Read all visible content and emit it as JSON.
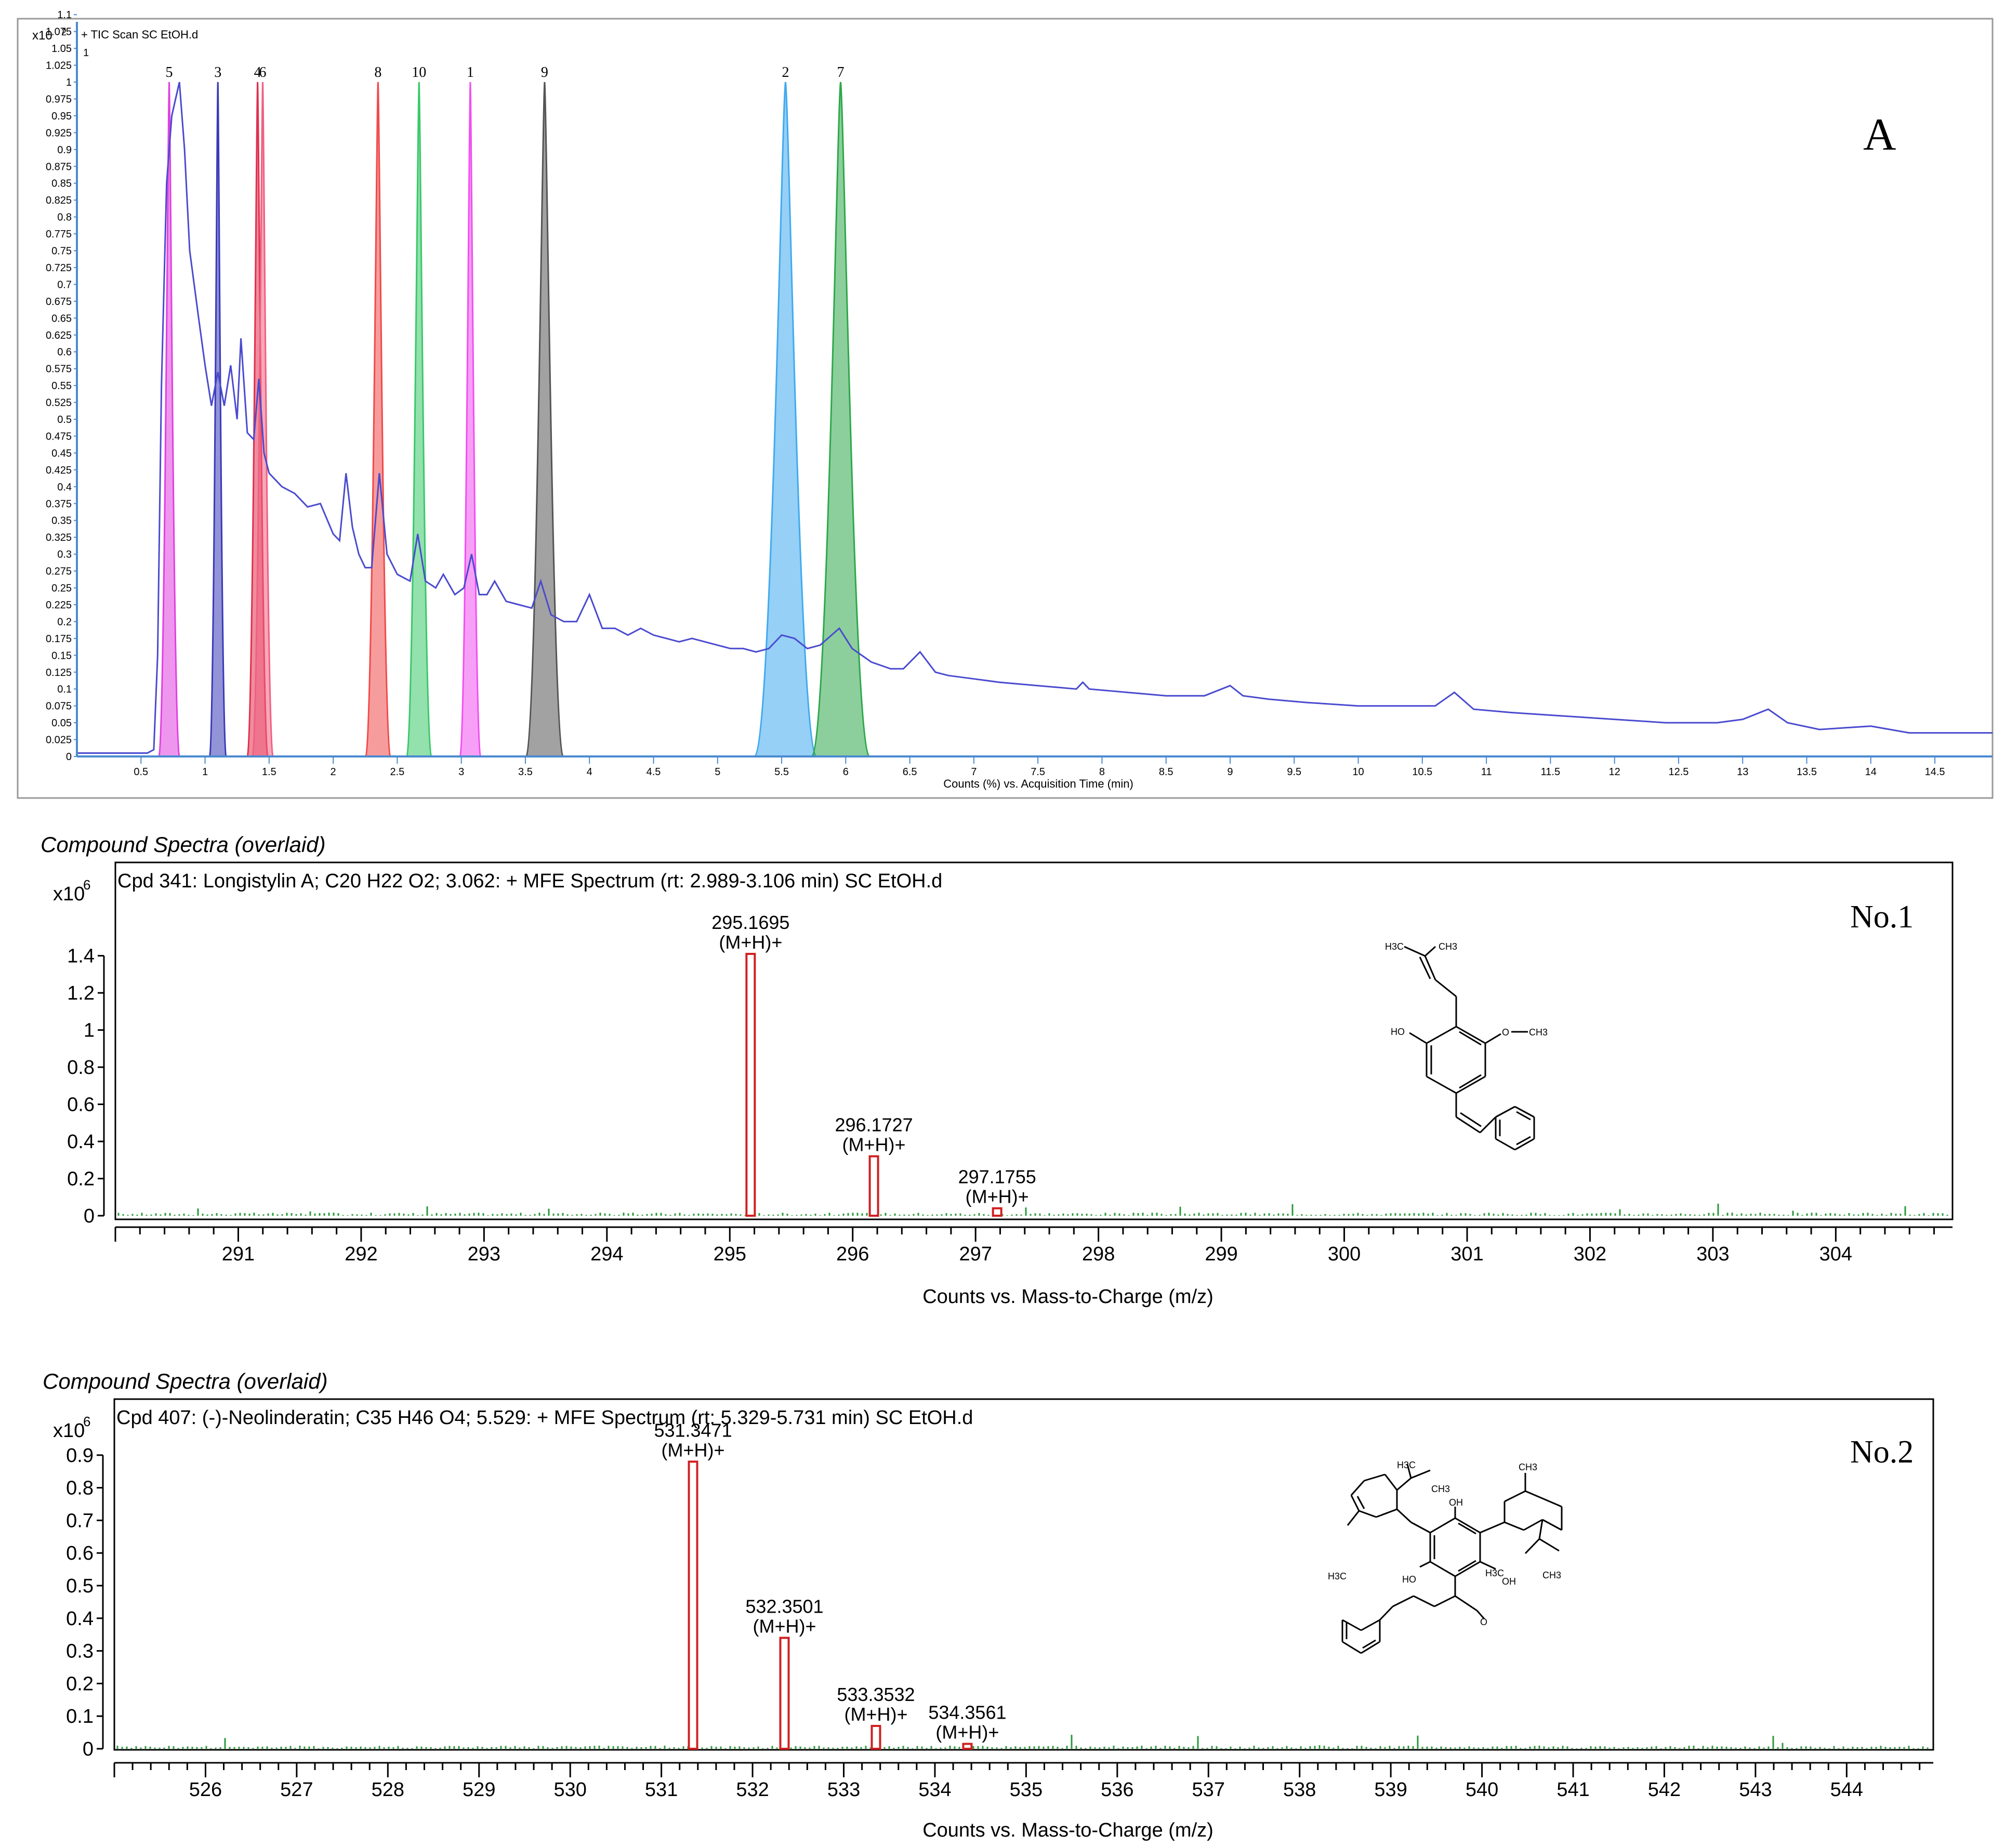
{
  "chart_data": [
    {
      "type": "line",
      "panel_label": "A",
      "legend_text": "+ TIC Scan SC EtOH.d",
      "y_multiplier_label": "x10",
      "y_multiplier_exp": "2",
      "y_corner_tick": "1",
      "xlabel": "Counts (%) vs. Acquisition Time (min)",
      "xlim": [
        0,
        14.95
      ],
      "ylim": [
        0,
        1.1
      ],
      "x_ticks": [
        "0.5",
        "1",
        "1.5",
        "2",
        "2.5",
        "3",
        "3.5",
        "4",
        "4.5",
        "5",
        "5.5",
        "6",
        "6.5",
        "7",
        "7.5",
        "8",
        "8.5",
        "9",
        "9.5",
        "10",
        "10.5",
        "11",
        "11.5",
        "12",
        "12.5",
        "13",
        "13.5",
        "14",
        "14.5"
      ],
      "y_ticks": [
        "0",
        "0.025",
        "0.05",
        "0.075",
        "0.1",
        "0.125",
        "0.15",
        "0.175",
        "0.2",
        "0.225",
        "0.25",
        "0.275",
        "0.3",
        "0.325",
        "0.35",
        "0.375",
        "0.4",
        "0.425",
        "0.45",
        "0.475",
        "0.5",
        "0.525",
        "0.55",
        "0.575",
        "0.6",
        "0.625",
        "0.65",
        "0.675",
        "0.7",
        "0.725",
        "0.75",
        "0.775",
        "0.8",
        "0.825",
        "0.85",
        "0.875",
        "0.9",
        "0.925",
        "0.95",
        "0.975",
        "1",
        "1.025",
        "1.05",
        "1.075",
        "1.1"
      ],
      "tic_series": {
        "color": "#4a4ad0",
        "points": [
          [
            0,
            0.005
          ],
          [
            0.55,
            0.005
          ],
          [
            0.6,
            0.01
          ],
          [
            0.63,
            0.15
          ],
          [
            0.66,
            0.55
          ],
          [
            0.7,
            0.85
          ],
          [
            0.74,
            0.95
          ],
          [
            0.8,
            1.0
          ],
          [
            0.84,
            0.9
          ],
          [
            0.88,
            0.75
          ],
          [
            0.95,
            0.65
          ],
          [
            1.0,
            0.58
          ],
          [
            1.05,
            0.52
          ],
          [
            1.1,
            0.57
          ],
          [
            1.15,
            0.52
          ],
          [
            1.2,
            0.58
          ],
          [
            1.25,
            0.5
          ],
          [
            1.28,
            0.62
          ],
          [
            1.33,
            0.48
          ],
          [
            1.38,
            0.47
          ],
          [
            1.42,
            0.56
          ],
          [
            1.46,
            0.45
          ],
          [
            1.5,
            0.42
          ],
          [
            1.55,
            0.41
          ],
          [
            1.6,
            0.4
          ],
          [
            1.7,
            0.39
          ],
          [
            1.75,
            0.38
          ],
          [
            1.8,
            0.37
          ],
          [
            1.9,
            0.375
          ],
          [
            2.0,
            0.33
          ],
          [
            2.05,
            0.32
          ],
          [
            2.1,
            0.42
          ],
          [
            2.15,
            0.34
          ],
          [
            2.2,
            0.3
          ],
          [
            2.25,
            0.28
          ],
          [
            2.3,
            0.28
          ],
          [
            2.36,
            0.42
          ],
          [
            2.42,
            0.3
          ],
          [
            2.5,
            0.27
          ],
          [
            2.6,
            0.26
          ],
          [
            2.66,
            0.33
          ],
          [
            2.72,
            0.26
          ],
          [
            2.8,
            0.25
          ],
          [
            2.86,
            0.27
          ],
          [
            2.95,
            0.24
          ],
          [
            3.02,
            0.25
          ],
          [
            3.08,
            0.3
          ],
          [
            3.14,
            0.24
          ],
          [
            3.2,
            0.24
          ],
          [
            3.26,
            0.26
          ],
          [
            3.35,
            0.23
          ],
          [
            3.45,
            0.225
          ],
          [
            3.55,
            0.22
          ],
          [
            3.62,
            0.26
          ],
          [
            3.7,
            0.21
          ],
          [
            3.8,
            0.2
          ],
          [
            3.9,
            0.2
          ],
          [
            4.0,
            0.24
          ],
          [
            4.1,
            0.19
          ],
          [
            4.2,
            0.19
          ],
          [
            4.3,
            0.18
          ],
          [
            4.4,
            0.19
          ],
          [
            4.5,
            0.18
          ],
          [
            4.6,
            0.175
          ],
          [
            4.7,
            0.17
          ],
          [
            4.8,
            0.175
          ],
          [
            4.9,
            0.17
          ],
          [
            5.0,
            0.165
          ],
          [
            5.1,
            0.16
          ],
          [
            5.2,
            0.16
          ],
          [
            5.3,
            0.155
          ],
          [
            5.4,
            0.16
          ],
          [
            5.5,
            0.18
          ],
          [
            5.6,
            0.175
          ],
          [
            5.7,
            0.16
          ],
          [
            5.8,
            0.165
          ],
          [
            5.95,
            0.19
          ],
          [
            6.05,
            0.16
          ],
          [
            6.2,
            0.14
          ],
          [
            6.35,
            0.13
          ],
          [
            6.45,
            0.13
          ],
          [
            6.58,
            0.155
          ],
          [
            6.7,
            0.125
          ],
          [
            6.8,
            0.12
          ],
          [
            7.0,
            0.115
          ],
          [
            7.2,
            0.11
          ],
          [
            7.5,
            0.105
          ],
          [
            7.8,
            0.1
          ],
          [
            7.85,
            0.11
          ],
          [
            7.9,
            0.1
          ],
          [
            8.2,
            0.095
          ],
          [
            8.5,
            0.09
          ],
          [
            8.8,
            0.09
          ],
          [
            9.0,
            0.105
          ],
          [
            9.1,
            0.09
          ],
          [
            9.3,
            0.085
          ],
          [
            9.6,
            0.08
          ],
          [
            10.0,
            0.075
          ],
          [
            10.3,
            0.075
          ],
          [
            10.6,
            0.075
          ],
          [
            10.75,
            0.095
          ],
          [
            10.9,
            0.07
          ],
          [
            11.2,
            0.065
          ],
          [
            11.6,
            0.06
          ],
          [
            12.0,
            0.055
          ],
          [
            12.4,
            0.05
          ],
          [
            12.8,
            0.05
          ],
          [
            13.0,
            0.055
          ],
          [
            13.2,
            0.07
          ],
          [
            13.35,
            0.05
          ],
          [
            13.6,
            0.04
          ],
          [
            14.0,
            0.045
          ],
          [
            14.3,
            0.035
          ],
          [
            14.95,
            0.035
          ]
        ]
      },
      "peaks": [
        {
          "label": "5",
          "center": 0.72,
          "width": 0.05,
          "color": "#e040e0"
        },
        {
          "label": "3",
          "center": 1.1,
          "width": 0.04,
          "color": "#3a3ab8"
        },
        {
          "label": "4",
          "center": 1.41,
          "width": 0.05,
          "color": "#e0304e"
        },
        {
          "label": "6",
          "center": 1.45,
          "width": 0.05,
          "color": "#f06080"
        },
        {
          "label": "8",
          "center": 2.35,
          "width": 0.06,
          "color": "#f04a4a"
        },
        {
          "label": "10",
          "center": 2.67,
          "width": 0.06,
          "color": "#3ac86a"
        },
        {
          "label": "1",
          "center": 3.07,
          "width": 0.05,
          "color": "#f050f0"
        },
        {
          "label": "9",
          "center": 3.65,
          "width": 0.09,
          "color": "#555555"
        },
        {
          "label": "2",
          "center": 5.53,
          "width": 0.15,
          "color": "#40aaee"
        },
        {
          "label": "7",
          "center": 5.96,
          "width": 0.14,
          "color": "#2ea84a"
        }
      ]
    },
    {
      "type": "bar",
      "section_title": "Compound Spectra (overlaid)",
      "header": "Cpd 341: Longistylin A; C20 H22 O2; 3.062: + MFE Spectrum (rt: 2.989-3.106 min) SC EtOH.d",
      "panel_label": "No.1",
      "y_multiplier_label": "x10",
      "y_multiplier_exp": "6",
      "xlabel": "Counts vs. Mass-to-Charge (m/z)",
      "xlim": [
        290.0,
        304.95
      ],
      "ylim": [
        0,
        1.55
      ],
      "x_ticks": [
        "291",
        "292",
        "293",
        "294",
        "295",
        "296",
        "297",
        "298",
        "299",
        "300",
        "301",
        "302",
        "303",
        "304"
      ],
      "y_ticks": [
        "0",
        "0.2",
        "0.4",
        "0.6",
        "0.8",
        "1",
        "1.2",
        "1.4"
      ],
      "bars": [
        {
          "x": 295.1695,
          "y": 1.41,
          "label": "295.1695",
          "sublabel": "(M+H)+"
        },
        {
          "x": 296.1727,
          "y": 0.32,
          "label": "296.1727",
          "sublabel": "(M+H)+"
        },
        {
          "x": 297.1755,
          "y": 0.04,
          "label": "297.1755",
          "sublabel": "(M+H)+"
        }
      ],
      "structure_labels": [
        "H3C",
        "CH3",
        "HO",
        "O",
        "CH3"
      ]
    },
    {
      "type": "bar",
      "section_title": "Compound Spectra (overlaid)",
      "header": "Cpd 407: (-)-Neolinderatin; C35 H46 O4; 5.529: + MFE Spectrum (rt: 5.329-5.731 min) SC EtOH.d",
      "panel_label": "No.2",
      "y_multiplier_label": "x10",
      "y_multiplier_exp": "6",
      "xlabel": "Counts vs. Mass-to-Charge (m/z)",
      "xlim": [
        525.0,
        544.95
      ],
      "ylim": [
        0,
        1.0
      ],
      "x_ticks": [
        "526",
        "527",
        "528",
        "529",
        "530",
        "531",
        "532",
        "533",
        "534",
        "535",
        "536",
        "537",
        "538",
        "539",
        "540",
        "541",
        "542",
        "543",
        "544"
      ],
      "y_ticks": [
        "0",
        "0.1",
        "0.2",
        "0.3",
        "0.4",
        "0.5",
        "0.6",
        "0.7",
        "0.8",
        "0.9"
      ],
      "bars": [
        {
          "x": 531.3471,
          "y": 0.88,
          "label": "531.3471",
          "sublabel": "(M+H)+"
        },
        {
          "x": 532.3501,
          "y": 0.34,
          "label": "532.3501",
          "sublabel": "(M+H)+"
        },
        {
          "x": 533.3532,
          "y": 0.07,
          "label": "533.3532",
          "sublabel": "(M+H)+"
        },
        {
          "x": 534.3561,
          "y": 0.015,
          "label": "534.3561",
          "sublabel": "(M+H)+"
        }
      ],
      "structure_labels": [
        "H3C",
        "CH3",
        "OH",
        "CH3",
        "H3C",
        "HO",
        "H3C",
        "OH",
        "CH3",
        "O"
      ]
    }
  ]
}
